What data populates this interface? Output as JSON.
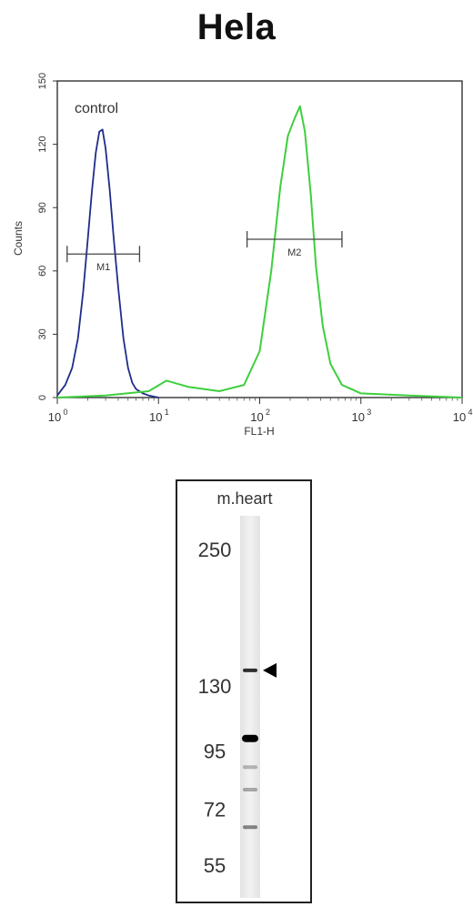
{
  "title": "Hela",
  "chart_data": [
    {
      "type": "line",
      "xscale": "log",
      "xlabel": "FL1-H",
      "ylabel": "Counts",
      "xlim": [
        1,
        10000
      ],
      "ylim": [
        0,
        150
      ],
      "x_ticks": [
        {
          "base": "10",
          "exp": "0"
        },
        {
          "base": "10",
          "exp": "1"
        },
        {
          "base": "10",
          "exp": "2"
        },
        {
          "base": "10",
          "exp": "3"
        },
        {
          "base": "10",
          "exp": "4"
        }
      ],
      "y_ticks": [
        "0",
        "30",
        "60",
        "90",
        "120",
        "150"
      ],
      "annotation": "control",
      "gates": [
        {
          "label": "M1",
          "x_start": 1.25,
          "x_end": 6.5,
          "y": 68
        },
        {
          "label": "M2",
          "x_start": 75,
          "x_end": 650,
          "y": 75
        }
      ],
      "series": [
        {
          "color": "#1f2d8a",
          "x": [
            1.0,
            1.2,
            1.4,
            1.6,
            1.8,
            2.0,
            2.2,
            2.4,
            2.6,
            2.8,
            3.0,
            3.3,
            3.6,
            4.0,
            4.5,
            5.0,
            5.5,
            6.0,
            7.0,
            8.0,
            10.0
          ],
          "values": [
            1,
            6,
            14,
            28,
            50,
            75,
            98,
            116,
            126,
            127,
            118,
            98,
            76,
            52,
            28,
            14,
            7,
            4,
            2,
            1,
            0
          ]
        },
        {
          "color": "#3ecf3e",
          "x": [
            1.0,
            3.0,
            8.0,
            12.0,
            20.0,
            40.0,
            70.0,
            100.0,
            130.0,
            160.0,
            190.0,
            220.0,
            250.0,
            280.0,
            320.0,
            360.0,
            420.0,
            500.0,
            650.0,
            1000.0,
            3000.0,
            10000.0
          ],
          "values": [
            0,
            1,
            3,
            8,
            5,
            3,
            6,
            22,
            60,
            100,
            124,
            132,
            138,
            126,
            96,
            62,
            34,
            16,
            6,
            2,
            1,
            0
          ]
        }
      ]
    },
    {
      "type": "table",
      "lane_label": "m.heart",
      "markers": [
        "250",
        "130",
        "95",
        "72",
        "55"
      ],
      "marker_kda": [
        250,
        130,
        95,
        72,
        55
      ],
      "bands_kda": [
        {
          "kda": 140,
          "intensity": 0.8
        },
        {
          "kda": 101,
          "intensity": 1.0
        },
        {
          "kda": 88,
          "intensity": 0.25
        },
        {
          "kda": 79,
          "intensity": 0.3
        },
        {
          "kda": 66,
          "intensity": 0.45
        }
      ],
      "arrow_kda": 140
    }
  ]
}
